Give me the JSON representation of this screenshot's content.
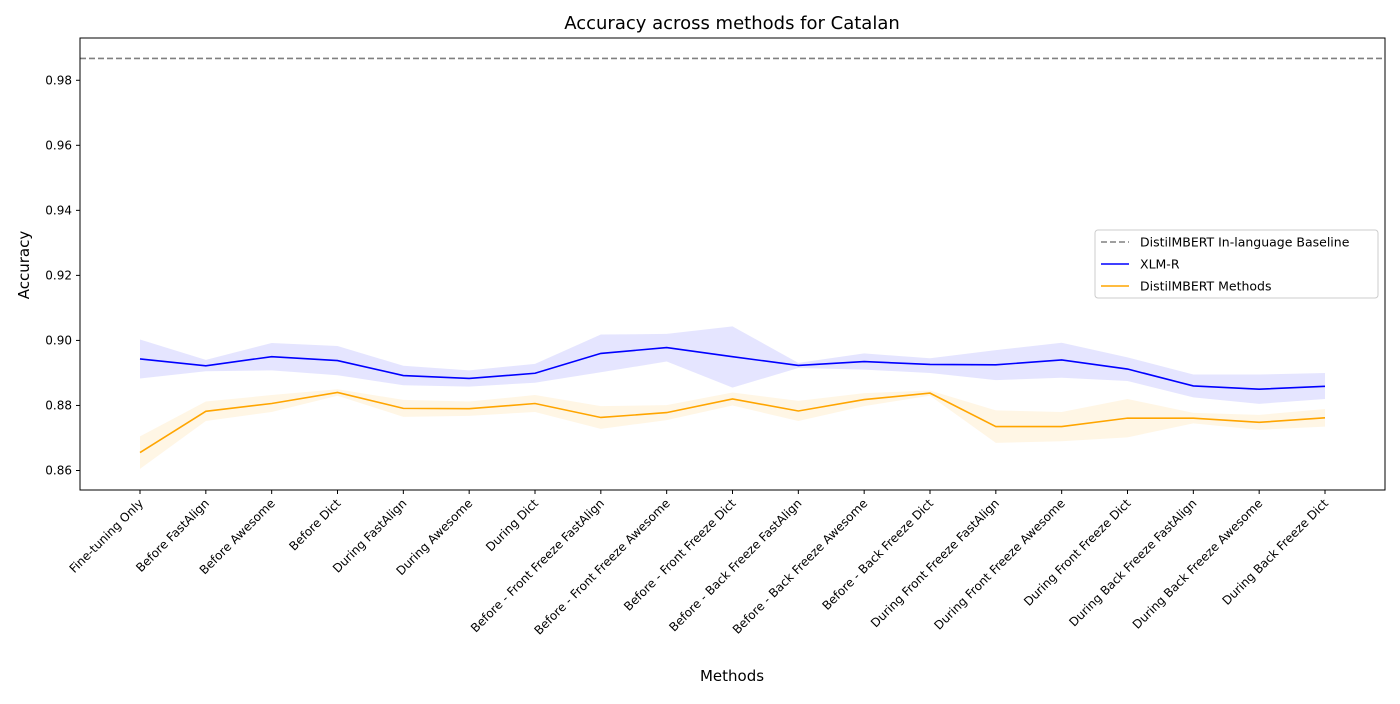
{
  "chart_data": {
    "type": "line",
    "title": "Accuracy across methods for Catalan",
    "xlabel": "Methods",
    "ylabel": "Accuracy",
    "ylim": [
      0.854,
      0.993
    ],
    "yticks": [
      0.86,
      0.88,
      0.9,
      0.92,
      0.94,
      0.96,
      0.98
    ],
    "ytick_labels": [
      "0.86",
      "0.88",
      "0.90",
      "0.92",
      "0.94",
      "0.96",
      "0.98"
    ],
    "grid": false,
    "legend_position": "center-right",
    "categories": [
      "Fine-tuning Only",
      "Before FastAlign",
      "Before Awesome",
      "Before Dict",
      "During FastAlign",
      "During Awesome",
      "During Dict",
      "Before - Front Freeze FastAlign",
      "Before - Front Freeze Awesome",
      "Before - Front Freeze Dict",
      "Before - Back Freeze FastAlign",
      "Before - Back Freeze Awesome",
      "Before - Back Freeze Dict",
      "During Front Freeze FastAlign",
      "During Front Freeze Awesome",
      "During Front Freeze Dict",
      "During Back Freeze FastAlign",
      "During Back Freeze Awesome",
      "During Back Freeze Dict"
    ],
    "baseline": {
      "name": "DistilMBERT In-language Baseline",
      "value": 0.9867,
      "color": "#808080",
      "style": "dashed"
    },
    "series": [
      {
        "name": "XLM-R",
        "color": "#0000ff",
        "band_color": "#0000ff",
        "values": [
          0.8943,
          0.8922,
          0.895,
          0.8938,
          0.8892,
          0.8883,
          0.8899,
          0.896,
          0.8978,
          0.895,
          0.8923,
          0.8935,
          0.8926,
          0.8925,
          0.894,
          0.8912,
          0.886,
          0.885,
          0.8859
        ],
        "lower": [
          0.8883,
          0.8905,
          0.8908,
          0.8893,
          0.8862,
          0.8858,
          0.887,
          0.8902,
          0.8935,
          0.8855,
          0.8915,
          0.891,
          0.89,
          0.8878,
          0.8885,
          0.8875,
          0.8825,
          0.8805,
          0.882
        ],
        "upper": [
          0.9003,
          0.894,
          0.8992,
          0.8983,
          0.8922,
          0.8908,
          0.8928,
          0.9018,
          0.902,
          0.9043,
          0.8931,
          0.896,
          0.8945,
          0.897,
          0.8993,
          0.8948,
          0.8895,
          0.8895,
          0.89
        ]
      },
      {
        "name": "DistilMBERT Methods",
        "color": "#ffa500",
        "band_color": "#ffa500",
        "values": [
          0.8655,
          0.8782,
          0.8806,
          0.884,
          0.8791,
          0.879,
          0.8806,
          0.8763,
          0.8778,
          0.882,
          0.8783,
          0.8818,
          0.8838,
          0.8735,
          0.8735,
          0.8761,
          0.8761,
          0.8748,
          0.8762
        ],
        "lower": [
          0.8605,
          0.8752,
          0.878,
          0.883,
          0.8765,
          0.8768,
          0.878,
          0.8728,
          0.8755,
          0.88,
          0.8752,
          0.8798,
          0.883,
          0.8685,
          0.869,
          0.8702,
          0.8745,
          0.8725,
          0.8735
        ],
        "upper": [
          0.8705,
          0.8812,
          0.8832,
          0.885,
          0.8817,
          0.8812,
          0.8832,
          0.8798,
          0.8801,
          0.884,
          0.8814,
          0.8838,
          0.8846,
          0.8785,
          0.878,
          0.882,
          0.8777,
          0.8771,
          0.8789
        ]
      }
    ]
  }
}
